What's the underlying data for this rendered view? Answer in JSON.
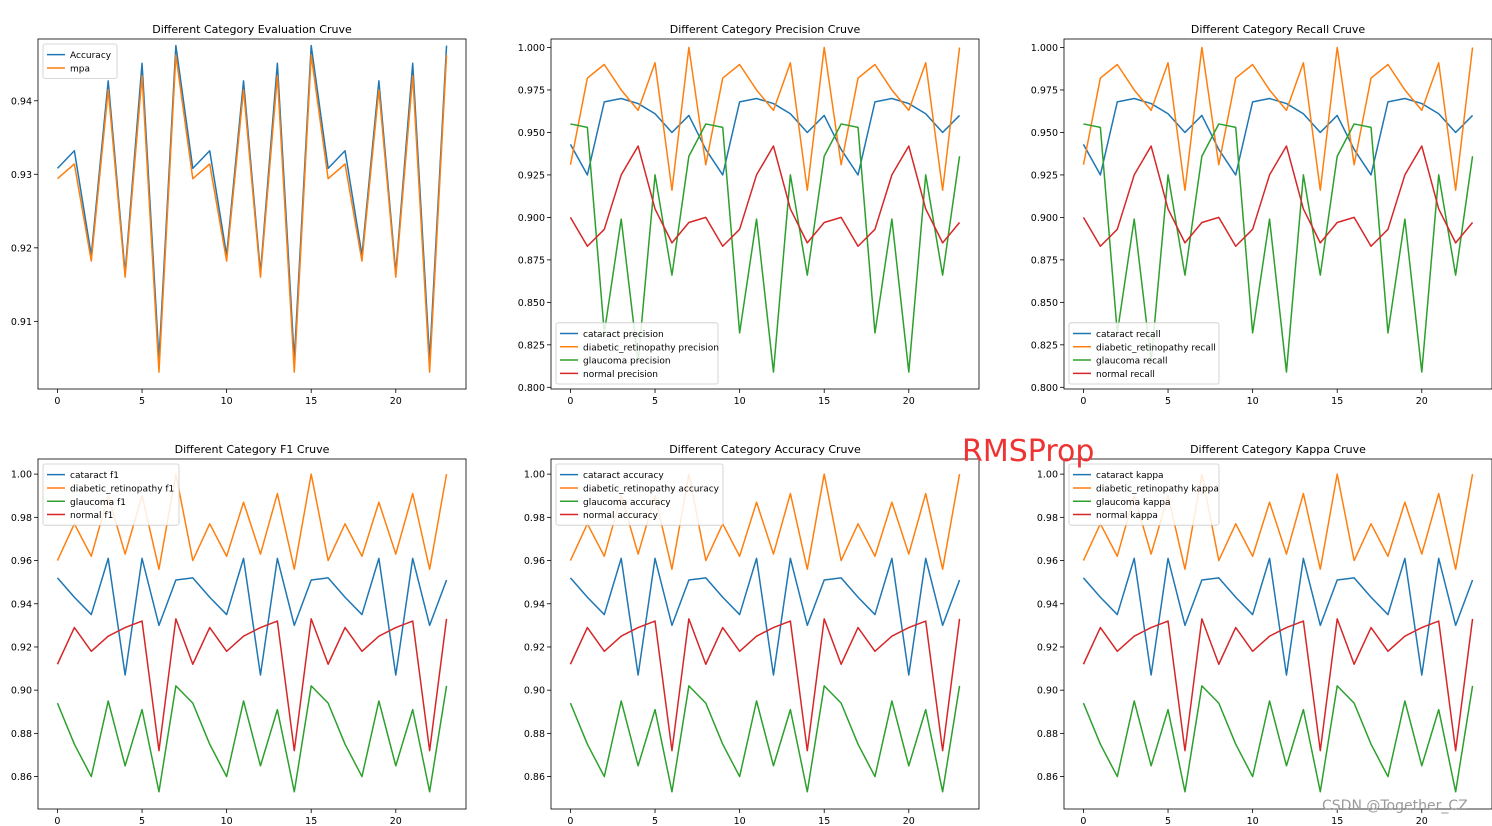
{
  "colors": {
    "series": [
      "#1f77b4",
      "#ff7f0e",
      "#2ca02c",
      "#d62728"
    ],
    "overlay_text": "#ee3333",
    "watermark": "#9a9a9a"
  },
  "overlay": {
    "text": "RMSProp"
  },
  "watermark": {
    "text": "CSDN @Together_CZ"
  },
  "chart_data": [
    {
      "type": "line",
      "title": "Different Category Evaluation Cruve",
      "xlabel": "",
      "ylabel": "",
      "xlim": [
        -1.15,
        24.15
      ],
      "ylim": [
        0.9008,
        0.9484
      ],
      "xticks": [
        0,
        5,
        10,
        15,
        20
      ],
      "yticks": [
        0.91,
        0.92,
        0.93,
        0.94
      ],
      "tick_labels_y": [
        "0.91",
        "0.92",
        "0.93",
        "0.94"
      ],
      "legend": "upper left",
      "x": [
        0,
        1,
        2,
        3,
        4,
        5,
        6,
        7,
        8,
        9,
        10,
        11,
        12,
        13,
        14,
        15,
        16,
        17,
        18,
        19,
        20,
        21,
        22,
        23
      ],
      "series": [
        {
          "name": "Accuracy",
          "values": [
            0.9308,
            0.9332,
            0.919,
            0.9427,
            0.9166,
            0.9451,
            0.9048,
            0.9475,
            0.9308,
            0.9332,
            0.919,
            0.9427,
            0.9166,
            0.9451,
            0.9048,
            0.9475,
            0.9308,
            0.9332,
            0.919,
            0.9427,
            0.9166,
            0.9451,
            0.9048,
            0.9475
          ]
        },
        {
          "name": "mpa",
          "values": [
            0.9294,
            0.9314,
            0.9182,
            0.9415,
            0.916,
            0.9434,
            0.9031,
            0.9462,
            0.9294,
            0.9314,
            0.9182,
            0.9415,
            0.916,
            0.9434,
            0.9031,
            0.9462,
            0.9294,
            0.9314,
            0.9182,
            0.9415,
            0.916,
            0.9434,
            0.9031,
            0.9462
          ]
        }
      ]
    },
    {
      "type": "line",
      "title": "Different Category Precision Cruve",
      "xlabel": "",
      "ylabel": "",
      "xlim": [
        -1.15,
        24.15
      ],
      "ylim": [
        0.799,
        1.005
      ],
      "xticks": [
        0,
        5,
        10,
        15,
        20
      ],
      "yticks": [
        0.8,
        0.825,
        0.85,
        0.875,
        0.9,
        0.925,
        0.95,
        0.975,
        1.0
      ],
      "tick_labels_y": [
        "0.800",
        "0.825",
        "0.850",
        "0.875",
        "0.900",
        "0.925",
        "0.950",
        "0.975",
        "1.000"
      ],
      "legend": "lower left",
      "x": [
        0,
        1,
        2,
        3,
        4,
        5,
        6,
        7,
        8,
        9,
        10,
        11,
        12,
        13,
        14,
        15,
        16,
        17,
        18,
        19,
        20,
        21,
        22,
        23
      ],
      "series": [
        {
          "name": "cataract precision",
          "values": [
            0.943,
            0.925,
            0.968,
            0.97,
            0.967,
            0.961,
            0.95,
            0.96,
            0.94,
            0.925,
            0.968,
            0.97,
            0.967,
            0.961,
            0.95,
            0.96,
            0.94,
            0.925,
            0.968,
            0.97,
            0.967,
            0.961,
            0.95,
            0.96
          ]
        },
        {
          "name": "diabetic_retinopathy precision",
          "values": [
            0.931,
            0.982,
            0.99,
            0.975,
            0.963,
            0.991,
            0.916,
            1.0,
            0.931,
            0.982,
            0.99,
            0.975,
            0.963,
            0.991,
            0.916,
            1.0,
            0.931,
            0.982,
            0.99,
            0.975,
            0.963,
            0.991,
            0.916,
            1.0
          ]
        },
        {
          "name": "glaucoma precision",
          "values": [
            0.955,
            0.953,
            0.832,
            0.899,
            0.815,
            0.925,
            0.866,
            0.936,
            0.955,
            0.953,
            0.832,
            0.899,
            0.809,
            0.925,
            0.866,
            0.936,
            0.955,
            0.953,
            0.832,
            0.899,
            0.809,
            0.925,
            0.866,
            0.936
          ]
        },
        {
          "name": "normal precision",
          "values": [
            0.9,
            0.883,
            0.893,
            0.925,
            0.942,
            0.905,
            0.885,
            0.897,
            0.9,
            0.883,
            0.893,
            0.925,
            0.942,
            0.905,
            0.885,
            0.897,
            0.9,
            0.883,
            0.893,
            0.925,
            0.942,
            0.905,
            0.885,
            0.897
          ]
        }
      ]
    },
    {
      "type": "line",
      "title": "Different Category Recall Cruve",
      "xlabel": "",
      "ylabel": "",
      "xlim": [
        -1.15,
        24.15
      ],
      "ylim": [
        0.799,
        1.005
      ],
      "xticks": [
        0,
        5,
        10,
        15,
        20
      ],
      "yticks": [
        0.8,
        0.825,
        0.85,
        0.875,
        0.9,
        0.925,
        0.95,
        0.975,
        1.0
      ],
      "tick_labels_y": [
        "0.800",
        "0.825",
        "0.850",
        "0.875",
        "0.900",
        "0.925",
        "0.950",
        "0.975",
        "1.000"
      ],
      "legend": "lower left",
      "x": [
        0,
        1,
        2,
        3,
        4,
        5,
        6,
        7,
        8,
        9,
        10,
        11,
        12,
        13,
        14,
        15,
        16,
        17,
        18,
        19,
        20,
        21,
        22,
        23
      ],
      "series": [
        {
          "name": "cataract recall",
          "values": [
            0.943,
            0.925,
            0.968,
            0.97,
            0.967,
            0.961,
            0.95,
            0.96,
            0.94,
            0.925,
            0.968,
            0.97,
            0.967,
            0.961,
            0.95,
            0.96,
            0.94,
            0.925,
            0.968,
            0.97,
            0.967,
            0.961,
            0.95,
            0.96
          ]
        },
        {
          "name": "diabetic_retinopathy recall",
          "values": [
            0.931,
            0.982,
            0.99,
            0.975,
            0.963,
            0.991,
            0.916,
            1.0,
            0.931,
            0.982,
            0.99,
            0.975,
            0.963,
            0.991,
            0.916,
            1.0,
            0.931,
            0.982,
            0.99,
            0.975,
            0.963,
            0.991,
            0.916,
            1.0
          ]
        },
        {
          "name": "glaucoma recall",
          "values": [
            0.955,
            0.953,
            0.832,
            0.899,
            0.815,
            0.925,
            0.866,
            0.936,
            0.955,
            0.953,
            0.832,
            0.899,
            0.809,
            0.925,
            0.866,
            0.936,
            0.955,
            0.953,
            0.832,
            0.899,
            0.809,
            0.925,
            0.866,
            0.936
          ]
        },
        {
          "name": "normal recall",
          "values": [
            0.9,
            0.883,
            0.893,
            0.925,
            0.942,
            0.905,
            0.885,
            0.897,
            0.9,
            0.883,
            0.893,
            0.925,
            0.942,
            0.905,
            0.885,
            0.897,
            0.9,
            0.883,
            0.893,
            0.925,
            0.942,
            0.905,
            0.885,
            0.897
          ]
        }
      ]
    },
    {
      "type": "line",
      "title": "Different Category F1 Cruve",
      "xlabel": "",
      "ylabel": "",
      "xlim": [
        -1.15,
        24.15
      ],
      "ylim": [
        0.845,
        1.007
      ],
      "xticks": [
        0,
        5,
        10,
        15,
        20
      ],
      "yticks": [
        0.86,
        0.88,
        0.9,
        0.92,
        0.94,
        0.96,
        0.98,
        1.0
      ],
      "tick_labels_y": [
        "0.86",
        "0.88",
        "0.90",
        "0.92",
        "0.94",
        "0.96",
        "0.98",
        "1.00"
      ],
      "legend": "upper left",
      "x": [
        0,
        1,
        2,
        3,
        4,
        5,
        6,
        7,
        8,
        9,
        10,
        11,
        12,
        13,
        14,
        15,
        16,
        17,
        18,
        19,
        20,
        21,
        22,
        23
      ],
      "series": [
        {
          "name": "cataract f1",
          "values": [
            0.952,
            0.943,
            0.935,
            0.961,
            0.907,
            0.961,
            0.93,
            0.951,
            0.952,
            0.943,
            0.935,
            0.961,
            0.907,
            0.961,
            0.93,
            0.951,
            0.952,
            0.943,
            0.935,
            0.961,
            0.907,
            0.961,
            0.93,
            0.951
          ]
        },
        {
          "name": "diabetic_retinopathy f1",
          "values": [
            0.96,
            0.977,
            0.962,
            0.99,
            0.963,
            0.99,
            0.956,
            1.0,
            0.96,
            0.977,
            0.962,
            0.987,
            0.963,
            0.991,
            0.956,
            1.0,
            0.96,
            0.977,
            0.962,
            0.987,
            0.963,
            0.991,
            0.956,
            1.0
          ]
        },
        {
          "name": "glaucoma f1",
          "values": [
            0.894,
            0.875,
            0.86,
            0.895,
            0.865,
            0.891,
            0.853,
            0.902,
            0.894,
            0.875,
            0.86,
            0.895,
            0.865,
            0.891,
            0.853,
            0.902,
            0.894,
            0.875,
            0.86,
            0.895,
            0.865,
            0.891,
            0.853,
            0.902
          ]
        },
        {
          "name": "normal f1",
          "values": [
            0.912,
            0.929,
            0.918,
            0.925,
            0.929,
            0.932,
            0.872,
            0.933,
            0.912,
            0.929,
            0.918,
            0.925,
            0.929,
            0.932,
            0.872,
            0.933,
            0.912,
            0.929,
            0.918,
            0.925,
            0.929,
            0.932,
            0.872,
            0.933
          ]
        }
      ]
    },
    {
      "type": "line",
      "title": "Different Category Accuracy Cruve",
      "xlabel": "",
      "ylabel": "",
      "xlim": [
        -1.15,
        24.15
      ],
      "ylim": [
        0.845,
        1.007
      ],
      "xticks": [
        0,
        5,
        10,
        15,
        20
      ],
      "yticks": [
        0.86,
        0.88,
        0.9,
        0.92,
        0.94,
        0.96,
        0.98,
        1.0
      ],
      "tick_labels_y": [
        "0.86",
        "0.88",
        "0.90",
        "0.92",
        "0.94",
        "0.96",
        "0.98",
        "1.00"
      ],
      "legend": "upper left",
      "x": [
        0,
        1,
        2,
        3,
        4,
        5,
        6,
        7,
        8,
        9,
        10,
        11,
        12,
        13,
        14,
        15,
        16,
        17,
        18,
        19,
        20,
        21,
        22,
        23
      ],
      "series": [
        {
          "name": "cataract accuracy",
          "values": [
            0.952,
            0.943,
            0.935,
            0.961,
            0.907,
            0.961,
            0.93,
            0.951,
            0.952,
            0.943,
            0.935,
            0.961,
            0.907,
            0.961,
            0.93,
            0.951,
            0.952,
            0.943,
            0.935,
            0.961,
            0.907,
            0.961,
            0.93,
            0.951
          ]
        },
        {
          "name": "diabetic_retinopathy accuracy",
          "values": [
            0.96,
            0.977,
            0.962,
            0.99,
            0.963,
            0.99,
            0.956,
            1.0,
            0.96,
            0.977,
            0.962,
            0.987,
            0.963,
            0.991,
            0.956,
            1.0,
            0.96,
            0.977,
            0.962,
            0.987,
            0.963,
            0.991,
            0.956,
            1.0
          ]
        },
        {
          "name": "glaucoma accuracy",
          "values": [
            0.894,
            0.875,
            0.86,
            0.895,
            0.865,
            0.891,
            0.853,
            0.902,
            0.894,
            0.875,
            0.86,
            0.895,
            0.865,
            0.891,
            0.853,
            0.902,
            0.894,
            0.875,
            0.86,
            0.895,
            0.865,
            0.891,
            0.853,
            0.902
          ]
        },
        {
          "name": "normal accuracy",
          "values": [
            0.912,
            0.929,
            0.918,
            0.925,
            0.929,
            0.932,
            0.872,
            0.933,
            0.912,
            0.929,
            0.918,
            0.925,
            0.929,
            0.932,
            0.872,
            0.933,
            0.912,
            0.929,
            0.918,
            0.925,
            0.929,
            0.932,
            0.872,
            0.933
          ]
        }
      ]
    },
    {
      "type": "line",
      "title": "Different Category Kappa Cruve",
      "xlabel": "",
      "ylabel": "",
      "xlim": [
        -1.15,
        24.15
      ],
      "ylim": [
        0.845,
        1.007
      ],
      "xticks": [
        0,
        5,
        10,
        15,
        20
      ],
      "yticks": [
        0.86,
        0.88,
        0.9,
        0.92,
        0.94,
        0.96,
        0.98,
        1.0
      ],
      "tick_labels_y": [
        "0.86",
        "0.88",
        "0.90",
        "0.92",
        "0.94",
        "0.96",
        "0.98",
        "1.00"
      ],
      "legend": "upper left",
      "x": [
        0,
        1,
        2,
        3,
        4,
        5,
        6,
        7,
        8,
        9,
        10,
        11,
        12,
        13,
        14,
        15,
        16,
        17,
        18,
        19,
        20,
        21,
        22,
        23
      ],
      "series": [
        {
          "name": "cataract kappa",
          "values": [
            0.952,
            0.943,
            0.935,
            0.961,
            0.907,
            0.961,
            0.93,
            0.951,
            0.952,
            0.943,
            0.935,
            0.961,
            0.907,
            0.961,
            0.93,
            0.951,
            0.952,
            0.943,
            0.935,
            0.961,
            0.907,
            0.961,
            0.93,
            0.951
          ]
        },
        {
          "name": "diabetic_retinopathy kappa",
          "values": [
            0.96,
            0.977,
            0.962,
            0.99,
            0.963,
            0.99,
            0.956,
            1.0,
            0.96,
            0.977,
            0.962,
            0.987,
            0.963,
            0.991,
            0.956,
            1.0,
            0.96,
            0.977,
            0.962,
            0.987,
            0.963,
            0.991,
            0.956,
            1.0
          ]
        },
        {
          "name": "glaucoma kappa",
          "values": [
            0.894,
            0.875,
            0.86,
            0.895,
            0.865,
            0.891,
            0.853,
            0.902,
            0.894,
            0.875,
            0.86,
            0.895,
            0.865,
            0.891,
            0.853,
            0.902,
            0.894,
            0.875,
            0.86,
            0.895,
            0.865,
            0.891,
            0.853,
            0.902
          ]
        },
        {
          "name": "normal kappa",
          "values": [
            0.912,
            0.929,
            0.918,
            0.925,
            0.929,
            0.932,
            0.872,
            0.933,
            0.912,
            0.929,
            0.918,
            0.925,
            0.929,
            0.932,
            0.872,
            0.933,
            0.912,
            0.929,
            0.918,
            0.925,
            0.929,
            0.932,
            0.872,
            0.933
          ]
        }
      ]
    }
  ]
}
